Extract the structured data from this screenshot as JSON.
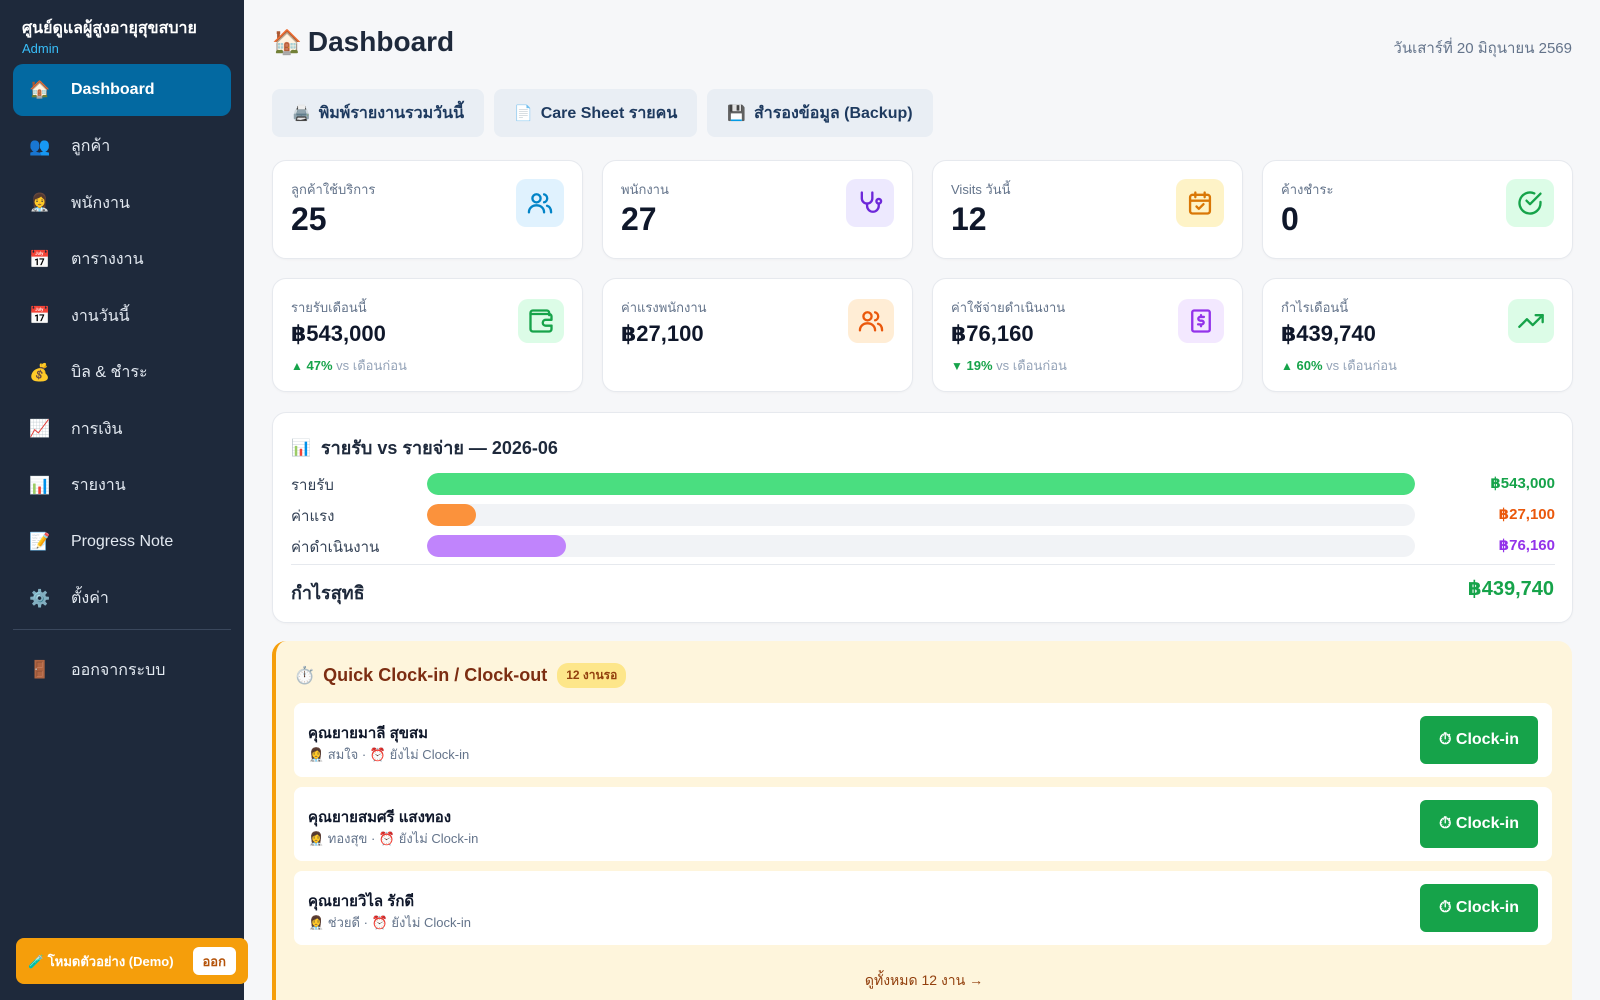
{
  "sidebar": {
    "brand_title": "ศูนย์ดูแลผู้สูงอายุสุขสบาย",
    "role": "Admin",
    "items": [
      {
        "label": "Dashboard",
        "icon": "🏠",
        "active": true
      },
      {
        "label": "ลูกค้า",
        "icon": "👥"
      },
      {
        "label": "พนักงาน",
        "icon": "👩‍⚕️"
      },
      {
        "label": "ตารางงาน",
        "icon": "📅"
      },
      {
        "label": "งานวันนี้",
        "icon": "📅"
      },
      {
        "label": "บิล & ชำระ",
        "icon": "💰"
      },
      {
        "label": "การเงิน",
        "icon": "📈"
      },
      {
        "label": "รายงาน",
        "icon": "📊"
      },
      {
        "label": "Progress Note",
        "icon": "📝"
      },
      {
        "label": "ตั้งค่า",
        "icon": "⚙️"
      }
    ],
    "logout": {
      "label": "ออกจากระบบ",
      "icon": "🚪"
    },
    "demo": {
      "label": "🧪 โหมดตัวอย่าง (Demo)",
      "exit_label": "ออก"
    }
  },
  "header": {
    "title": "Dashboard",
    "title_icon": "🏠",
    "date": "วันเสาร์ที่ 20 มิถุนายน 2569"
  },
  "actions": [
    {
      "icon": "🖨️",
      "label": "พิมพ์รายงานรวมวันนี้"
    },
    {
      "icon": "📄",
      "label": "Care Sheet รายคน"
    },
    {
      "icon": "💾",
      "label": "สำรองข้อมูล (Backup)"
    }
  ],
  "stats": [
    {
      "label": "ลูกค้าใช้บริการ",
      "value": "25",
      "icon": "users-icon"
    },
    {
      "label": "พนักงาน",
      "value": "27",
      "icon": "stethoscope-icon"
    },
    {
      "label": "Visits วันนี้",
      "value": "12",
      "icon": "calendar-check-icon"
    },
    {
      "label": "ค้างชำระ",
      "value": "0",
      "icon": "check-circle-icon"
    }
  ],
  "money": [
    {
      "label": "รายรับเดือนนี้",
      "value": "฿543,000",
      "icon": "wallet-icon",
      "trend_arrow": "▲",
      "trend_pct": "47%",
      "trend_text": "vs เดือนก่อน"
    },
    {
      "label": "ค่าแรงพนักงาน",
      "value": "฿27,100",
      "icon": "users-icon"
    },
    {
      "label": "ค่าใช้จ่ายดำเนินงาน",
      "value": "฿76,160",
      "icon": "receipt-icon",
      "trend_arrow": "▼",
      "trend_pct": "19%",
      "trend_text": "vs เดือนก่อน"
    },
    {
      "label": "กำไรเดือนนี้",
      "value": "฿439,740",
      "icon": "trending-up-icon",
      "trend_arrow": "▲",
      "trend_pct": "60%",
      "trend_text": "vs เดือนก่อน"
    }
  ],
  "colors": {
    "accent": "#0369a1",
    "sidebar": "#1e293b",
    "income": "#4ade80",
    "labor": "#fb923c",
    "operating": "#c084fc",
    "clock_button": "#16a34a",
    "demo": "#f59e0b"
  },
  "chart_data": {
    "type": "bar",
    "title": "รายรับ vs รายจ่าย — 2026-06",
    "title_icon": "📊",
    "categories": [
      "รายรับ",
      "ค่าแรง",
      "ค่าดำเนินงาน"
    ],
    "values": [
      543000,
      27100,
      76160
    ],
    "value_labels": [
      "฿543,000",
      "฿27,100",
      "฿76,160"
    ],
    "colors": [
      "#4ade80",
      "#fb923c",
      "#c084fc"
    ],
    "value_colors": [
      "#16a34a",
      "#ea580c",
      "#9333ea"
    ],
    "max": 543000,
    "profit_label": "กำไรสุทธิ",
    "profit_value": "฿439,740"
  },
  "quick": {
    "title": "Quick Clock-in / Clock-out",
    "title_icon": "⏱️",
    "badge": "12 งานรอ",
    "tasks": [
      {
        "name": "คุณยายมาลี สุขสม",
        "meta": "👩‍⚕️ สมใจ · ⏰ ยังไม่ Clock-in",
        "button": "⏱ Clock-in"
      },
      {
        "name": "คุณยายสมศรี แสงทอง",
        "meta": "👩‍⚕️ ทองสุข · ⏰ ยังไม่ Clock-in",
        "button": "⏱ Clock-in"
      },
      {
        "name": "คุณยายวิไล รักดี",
        "meta": "👩‍⚕️ ช่วยดี · ⏰ ยังไม่ Clock-in",
        "button": "⏱ Clock-in"
      }
    ],
    "see_all": "ดูทั้งหมด 12 งาน →"
  }
}
